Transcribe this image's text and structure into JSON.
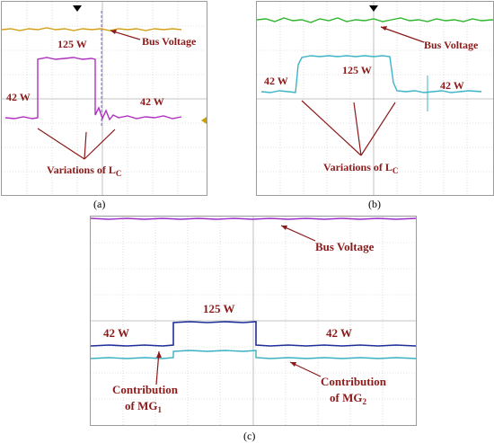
{
  "panels": {
    "a": {
      "caption": "(a)",
      "bus_voltage_label": "Bus Voltage",
      "high_power_label": "125 W",
      "low_power_left_label": "42 W",
      "low_power_right_label": "42 W",
      "variations_label": "Variations of L",
      "variations_subscript": "C"
    },
    "b": {
      "caption": "(b)",
      "bus_voltage_label": "Bus Voltage",
      "high_power_label": "125 W",
      "low_power_left_label": "42 W",
      "low_power_right_label": "42 W",
      "variations_label": "Variations of L",
      "variations_subscript": "C"
    },
    "c": {
      "caption": "(c)",
      "bus_voltage_label": "Bus Voltage",
      "high_power_label": "125 W",
      "low_power_left_label": "42 W",
      "low_power_right_label": "42 W",
      "contribution_1_line1": "Contribution",
      "contribution_1_line2": "of MG",
      "contribution_1_sub": "1",
      "contribution_2_line1": "Contribution",
      "contribution_2_line2": "of MG",
      "contribution_2_sub": "2"
    }
  },
  "colors": {
    "grid": "#c8c8c8",
    "annotation": "#8b1a1a",
    "bus_a": "#d4a017",
    "bus_b": "#2db52d",
    "bus_c": "#9b30c8",
    "power_a": "#b030c0",
    "power_b": "#3cb4c8",
    "mg1": "#1f2f9a",
    "mg2": "#3ab0c0"
  }
}
